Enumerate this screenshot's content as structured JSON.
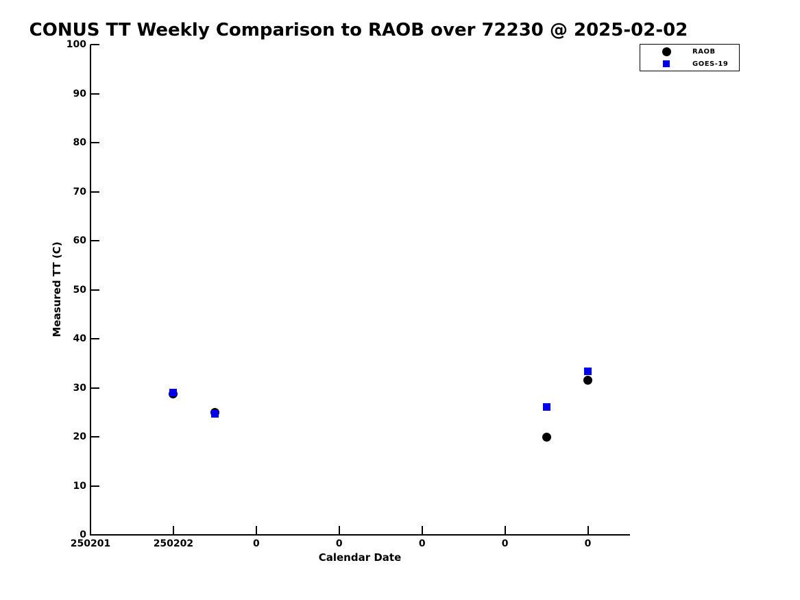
{
  "chart_data": {
    "type": "scatter",
    "title": "CONUS TT Weekly Comparison to RAOB over 72230 @ 2025-02-02",
    "xlabel": "Calendar Date",
    "ylabel": "Measured TT (C)",
    "x_tick_labels": [
      "250201",
      "250202",
      "0",
      "0",
      "0",
      "0",
      "0"
    ],
    "y_ticks": [
      0,
      10,
      20,
      30,
      40,
      50,
      60,
      70,
      80,
      90,
      100
    ],
    "ylim": [
      0,
      100
    ],
    "xlim": [
      0,
      6.5
    ],
    "grid": false,
    "legend_position": "upper right",
    "series": [
      {
        "name": "RAOB",
        "marker": "circle",
        "color": "#000000",
        "points": [
          {
            "x": 1.0,
            "y": 28.7
          },
          {
            "x": 1.5,
            "y": 25.0
          },
          {
            "x": 5.5,
            "y": 20.0
          },
          {
            "x": 6.0,
            "y": 31.6
          }
        ]
      },
      {
        "name": "GOES-19",
        "marker": "square",
        "color": "#0000ee",
        "points": [
          {
            "x": 1.0,
            "y": 29.0
          },
          {
            "x": 1.5,
            "y": 24.7
          },
          {
            "x": 5.5,
            "y": 26.1
          },
          {
            "x": 6.0,
            "y": 33.3
          }
        ]
      }
    ]
  }
}
